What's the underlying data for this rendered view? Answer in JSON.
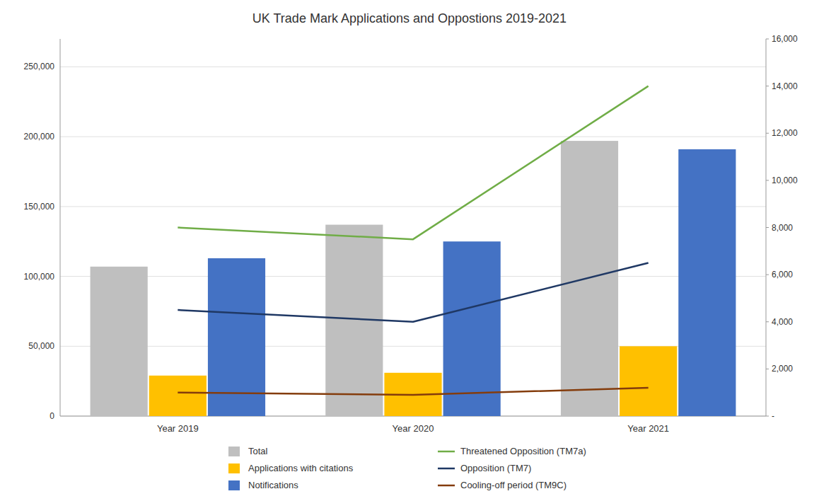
{
  "chart_data": {
    "type": "bar",
    "title": "UK Trade Mark Applications and Oppostions 2019-2021",
    "categories": [
      "Year 2019",
      "Year 2020",
      "Year 2021"
    ],
    "series": [
      {
        "name": "Total",
        "type": "bar",
        "color": "#bfbfbf",
        "values": [
          107000,
          137000,
          197000
        ]
      },
      {
        "name": "Applications with citations",
        "type": "bar",
        "color": "#ffc000",
        "values": [
          29000,
          31000,
          50000
        ]
      },
      {
        "name": "Notifications",
        "type": "bar",
        "color": "#4472c4",
        "values": [
          113000,
          125000,
          191000
        ]
      },
      {
        "name": "Threatened Opposition (TM7a)",
        "type": "line",
        "axis": "y2",
        "color": "#70ad47",
        "values": [
          8000,
          7500,
          14000
        ]
      },
      {
        "name": "Opposition (TM7)",
        "type": "line",
        "axis": "y2",
        "color": "#1f3864",
        "values": [
          4500,
          4000,
          6500
        ]
      },
      {
        "name": "Cooling-off period (TM9C)",
        "type": "line",
        "axis": "y2",
        "color": "#843c0c",
        "values": [
          1000,
          900,
          1200
        ]
      }
    ],
    "ylim": [
      0,
      270000
    ],
    "yticks": [
      0,
      {
        "value": 50000,
        "label": "50,000"
      },
      {
        "value": 100000,
        "label": "100,000"
      },
      {
        "value": 150000,
        "label": "150,000"
      },
      {
        "value": 200000,
        "label": "200,000"
      },
      {
        "value": 250000,
        "label": "250,000"
      }
    ],
    "y2lim": [
      0,
      16000
    ],
    "y2ticks": [
      {
        "value": 0,
        "label": "-"
      },
      {
        "value": 2000,
        "label": "2,000"
      },
      {
        "value": 4000,
        "label": "4,000"
      },
      {
        "value": 6000,
        "label": "6,000"
      },
      {
        "value": 8000,
        "label": "8,000"
      },
      {
        "value": 10000,
        "label": "10,000"
      },
      {
        "value": 12000,
        "label": "12,000"
      },
      {
        "value": 14000,
        "label": "14,000"
      },
      {
        "value": 16000,
        "label": "16,000"
      }
    ],
    "grid": true,
    "legend": "bottom"
  }
}
